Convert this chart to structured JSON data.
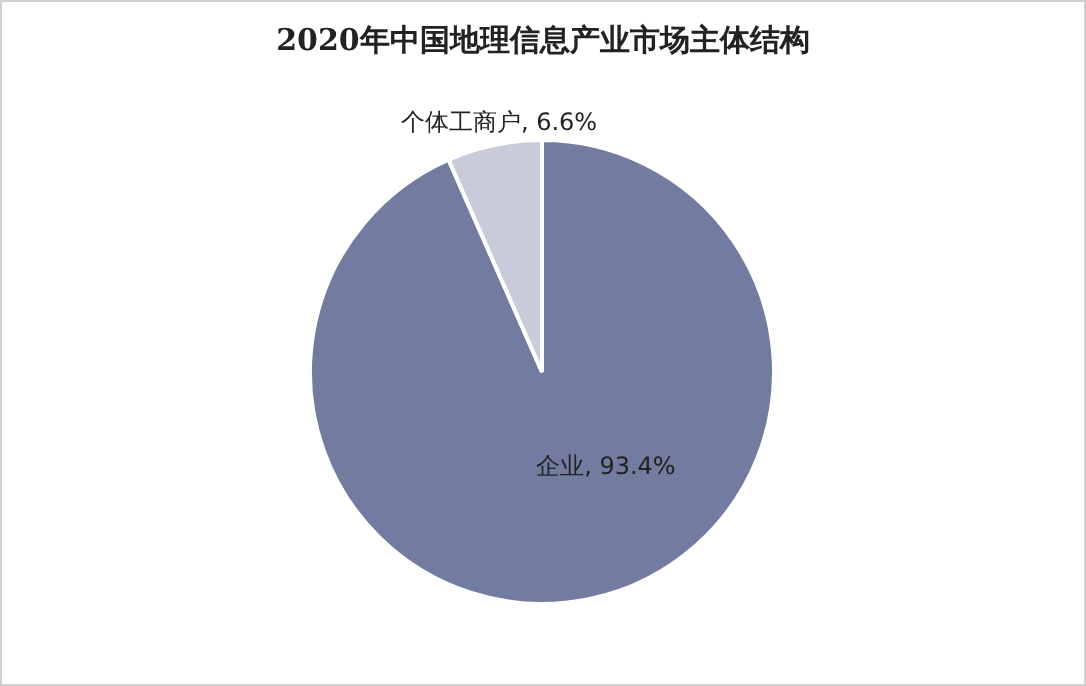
{
  "chart_data": {
    "type": "pie",
    "title": "2020年中国地理信息产业市场主体结构",
    "categories": [
      "企业",
      "个体工商户"
    ],
    "values": [
      93.4,
      6.6
    ],
    "colors": [
      "#717ca0",
      "#c9cbdb"
    ],
    "value_labels": [
      "93.4%",
      "6.6%"
    ],
    "legend": false
  }
}
